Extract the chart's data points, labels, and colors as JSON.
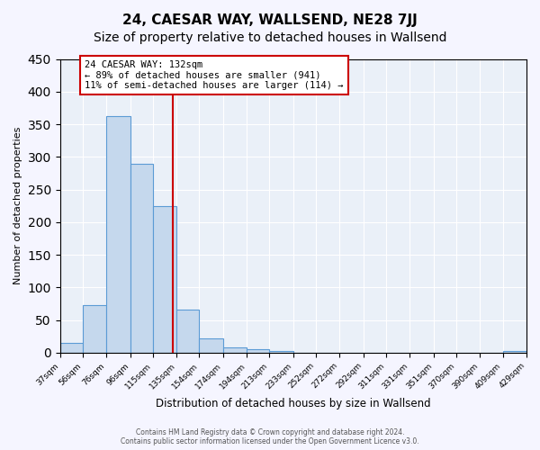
{
  "title": "24, CAESAR WAY, WALLSEND, NE28 7JJ",
  "subtitle": "Size of property relative to detached houses in Wallsend",
  "xlabel": "Distribution of detached houses by size in Wallsend",
  "ylabel": "Number of detached properties",
  "bar_values": [
    15,
    73,
    362,
    290,
    225,
    66,
    22,
    8,
    5,
    3,
    0,
    0,
    0,
    0,
    0,
    0,
    0,
    0,
    0,
    3
  ],
  "bin_edges": [
    37,
    56,
    76,
    96,
    115,
    135,
    154,
    174,
    194,
    213,
    233,
    252,
    272,
    292,
    311,
    331,
    351,
    370,
    390,
    409,
    429
  ],
  "tick_labels": [
    "37sqm",
    "56sqm",
    "76sqm",
    "96sqm",
    "115sqm",
    "135sqm",
    "154sqm",
    "174sqm",
    "194sqm",
    "213sqm",
    "233sqm",
    "252sqm",
    "272sqm",
    "292sqm",
    "311sqm",
    "331sqm",
    "351sqm",
    "370sqm",
    "390sqm",
    "409sqm",
    "429sqm"
  ],
  "bar_color": "#c5d8ed",
  "bar_edge_color": "#5b9bd5",
  "vline_x": 132,
  "vline_color": "#cc0000",
  "ylim": [
    0,
    450
  ],
  "yticks": [
    0,
    50,
    100,
    150,
    200,
    250,
    300,
    350,
    400,
    450
  ],
  "annotation_title": "24 CAESAR WAY: 132sqm",
  "annotation_line1": "← 89% of detached houses are smaller (941)",
  "annotation_line2": "11% of semi-detached houses are larger (114) →",
  "annotation_box_color": "#cc0000",
  "footer_line1": "Contains HM Land Registry data © Crown copyright and database right 2024.",
  "footer_line2": "Contains public sector information licensed under the Open Government Licence v3.0.",
  "background_color": "#eaf0f8",
  "grid_color": "#ffffff",
  "title_fontsize": 11,
  "subtitle_fontsize": 10
}
